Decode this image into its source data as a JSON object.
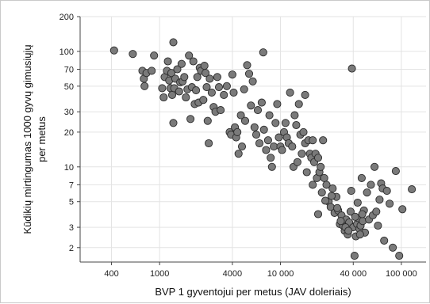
{
  "chart_data": {
    "type": "scatter",
    "xlabel": "BVP 1 gyventojui per metus (JAV doleriais)",
    "ylabel_line1": "Kūdikių mirtingumas 1000 gyvų gimusiųjų",
    "ylabel_line2": "per metus",
    "x_scale": "log",
    "y_scale": "log",
    "xlim": [
      220,
      160000
    ],
    "ylim": [
      1.5,
      200
    ],
    "xticks": [
      400,
      1000,
      4000,
      10000,
      40000,
      100000
    ],
    "xtick_labels": [
      "400",
      "1000",
      "4000",
      "10 000",
      "40 000",
      "100 000"
    ],
    "yticks": [
      2,
      3,
      5,
      7,
      10,
      20,
      30,
      50,
      70,
      100,
      200
    ],
    "ytick_labels": [
      "2",
      "3",
      "5",
      "7",
      "10",
      "20",
      "30",
      "50",
      "70",
      "100",
      "200"
    ],
    "grid": true,
    "marker_color": "#7a7a7a",
    "marker_edge": "#2b2b2b",
    "points": [
      [
        420,
        102
      ],
      [
        600,
        95
      ],
      [
        720,
        68
      ],
      [
        740,
        58
      ],
      [
        750,
        50
      ],
      [
        780,
        65
      ],
      [
        900,
        92
      ],
      [
        860,
        68
      ],
      [
        1050,
        48
      ],
      [
        1080,
        40
      ],
      [
        1100,
        60
      ],
      [
        1150,
        68
      ],
      [
        1170,
        82
      ],
      [
        1200,
        56
      ],
      [
        1230,
        48
      ],
      [
        1250,
        65
      ],
      [
        1270,
        42
      ],
      [
        1300,
        120
      ],
      [
        1320,
        48
      ],
      [
        1350,
        58
      ],
      [
        1400,
        70
      ],
      [
        1450,
        45
      ],
      [
        1480,
        54
      ],
      [
        1520,
        78
      ],
      [
        1550,
        55
      ],
      [
        1600,
        60
      ],
      [
        1650,
        40
      ],
      [
        1700,
        47
      ],
      [
        1300,
        24
      ],
      [
        1750,
        92
      ],
      [
        1800,
        26
      ],
      [
        1850,
        49
      ],
      [
        1900,
        82
      ],
      [
        1950,
        35
      ],
      [
        2000,
        46
      ],
      [
        2050,
        60
      ],
      [
        2100,
        36
      ],
      [
        2150,
        72
      ],
      [
        2200,
        68
      ],
      [
        2300,
        38
      ],
      [
        2350,
        75
      ],
      [
        2400,
        65
      ],
      [
        2450,
        49
      ],
      [
        2500,
        25
      ],
      [
        2550,
        16
      ],
      [
        2600,
        58
      ],
      [
        2700,
        44
      ],
      [
        2800,
        33
      ],
      [
        2900,
        30
      ],
      [
        3000,
        60
      ],
      [
        3100,
        49
      ],
      [
        3200,
        31
      ],
      [
        3400,
        42
      ],
      [
        3600,
        50
      ],
      [
        3800,
        20
      ],
      [
        3900,
        19
      ],
      [
        4000,
        63
      ],
      [
        4100,
        44
      ],
      [
        4200,
        22
      ],
      [
        4300,
        18
      ],
      [
        4400,
        20
      ],
      [
        4500,
        13
      ],
      [
        4700,
        28
      ],
      [
        4800,
        15
      ],
      [
        5000,
        47
      ],
      [
        5100,
        25
      ],
      [
        5300,
        76
      ],
      [
        5500,
        64
      ],
      [
        5700,
        34
      ],
      [
        5900,
        55
      ],
      [
        6100,
        22
      ],
      [
        6300,
        19
      ],
      [
        6500,
        31
      ],
      [
        6700,
        16
      ],
      [
        7000,
        36
      ],
      [
        7200,
        98
      ],
      [
        7300,
        21
      ],
      [
        7600,
        14
      ],
      [
        7900,
        17
      ],
      [
        8100,
        28
      ],
      [
        8300,
        12
      ],
      [
        8500,
        10
      ],
      [
        8800,
        15
      ],
      [
        9100,
        24
      ],
      [
        9400,
        35
      ],
      [
        9700,
        18
      ],
      [
        10000,
        15
      ],
      [
        10300,
        14
      ],
      [
        10700,
        20
      ],
      [
        11000,
        24
      ],
      [
        11300,
        18
      ],
      [
        11700,
        16
      ],
      [
        12000,
        44
      ],
      [
        12500,
        15
      ],
      [
        12800,
        10
      ],
      [
        13100,
        28
      ],
      [
        13500,
        23
      ],
      [
        13800,
        11
      ],
      [
        14200,
        35
      ],
      [
        14600,
        19
      ],
      [
        15000,
        13
      ],
      [
        15500,
        20
      ],
      [
        16000,
        16
      ],
      [
        16500,
        9
      ],
      [
        17000,
        17
      ],
      [
        17500,
        13
      ],
      [
        18000,
        12
      ],
      [
        18500,
        7
      ],
      [
        19000,
        11
      ],
      [
        19500,
        13
      ],
      [
        20000,
        8
      ],
      [
        20500,
        12
      ],
      [
        21000,
        9
      ],
      [
        21500,
        10
      ],
      [
        22000,
        6
      ],
      [
        22500,
        17
      ],
      [
        23000,
        8
      ],
      [
        24000,
        7
      ],
      [
        25000,
        5
      ],
      [
        26000,
        4.5
      ],
      [
        27000,
        6.5
      ],
      [
        28000,
        4
      ],
      [
        29000,
        5.5
      ],
      [
        30000,
        4.2
      ],
      [
        31000,
        3.2
      ],
      [
        32000,
        3.8
      ],
      [
        33000,
        3.1
      ],
      [
        34000,
        2.8
      ],
      [
        35000,
        3.5
      ],
      [
        36000,
        2.6
      ],
      [
        37000,
        3.3
      ],
      [
        38000,
        4.1
      ],
      [
        39000,
        71
      ],
      [
        40000,
        3.0
      ],
      [
        41000,
        1.7
      ],
      [
        42000,
        2.5
      ],
      [
        43000,
        3.2
      ],
      [
        44000,
        3.6
      ],
      [
        45000,
        2.9
      ],
      [
        46000,
        3.1
      ],
      [
        47000,
        8
      ],
      [
        48000,
        3.4
      ],
      [
        49000,
        4.2
      ],
      [
        50000,
        2.7
      ],
      [
        52000,
        6
      ],
      [
        54000,
        3.5
      ],
      [
        56000,
        7
      ],
      [
        58000,
        3.8
      ],
      [
        60000,
        10
      ],
      [
        62000,
        4.1
      ],
      [
        64000,
        3.1
      ],
      [
        66000,
        5.2
      ],
      [
        68000,
        7.2
      ],
      [
        70000,
        6.5
      ],
      [
        72000,
        2.3
      ],
      [
        76000,
        6.2
      ],
      [
        80000,
        4.8
      ],
      [
        85000,
        2.0
      ],
      [
        90000,
        9.2
      ],
      [
        96000,
        1.7
      ],
      [
        102000,
        4.3
      ],
      [
        122000,
        6.4
      ],
      [
        16000,
        42
      ],
      [
        18500,
        17
      ],
      [
        20500,
        3.9
      ],
      [
        23500,
        5.1
      ],
      [
        26500,
        5.6
      ],
      [
        29500,
        4.4
      ],
      [
        31500,
        3.4
      ],
      [
        34500,
        3.0
      ],
      [
        36500,
        2.8
      ],
      [
        38500,
        6.2
      ],
      [
        41500,
        3.7
      ],
      [
        43500,
        4.9
      ],
      [
        45500,
        2.6
      ],
      [
        47500,
        3.9
      ]
    ]
  }
}
